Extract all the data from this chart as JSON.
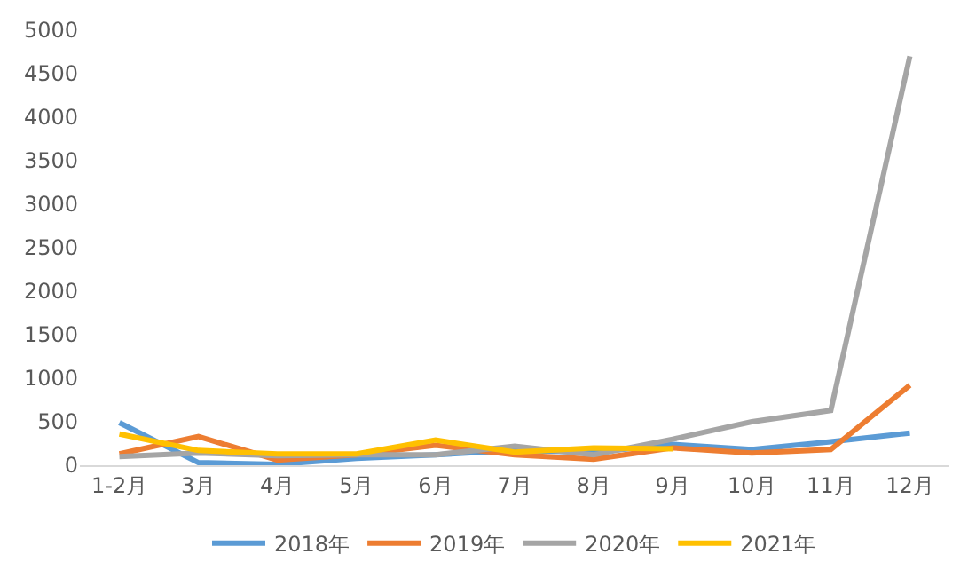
{
  "chart_data": {
    "type": "line",
    "categories": [
      "1-2月",
      "3月",
      "4月",
      "5月",
      "6月",
      "7月",
      "8月",
      "9月",
      "10月",
      "11月",
      "12月"
    ],
    "series": [
      {
        "name": "2018年",
        "color": "#5b9bd5",
        "values": [
          490,
          30,
          10,
          80,
          120,
          170,
          150,
          240,
          180,
          270,
          370
        ]
      },
      {
        "name": "2019年",
        "color": "#ed7d31",
        "values": [
          130,
          330,
          60,
          120,
          230,
          120,
          70,
          200,
          140,
          180,
          920
        ]
      },
      {
        "name": "2020年",
        "color": "#a5a5a5",
        "values": [
          100,
          140,
          110,
          120,
          120,
          220,
          120,
          300,
          500,
          630,
          4700
        ]
      },
      {
        "name": "2021年",
        "color": "#ffc000",
        "values": [
          360,
          170,
          130,
          130,
          290,
          150,
          200,
          190,
          null,
          null,
          null
        ]
      }
    ],
    "ylim": [
      0,
      5000
    ],
    "yticks": [
      0,
      500,
      1000,
      1500,
      2000,
      2500,
      3000,
      3500,
      4000,
      4500,
      5000
    ],
    "legend": "bottom",
    "marker": "none",
    "line_style": "solid"
  }
}
